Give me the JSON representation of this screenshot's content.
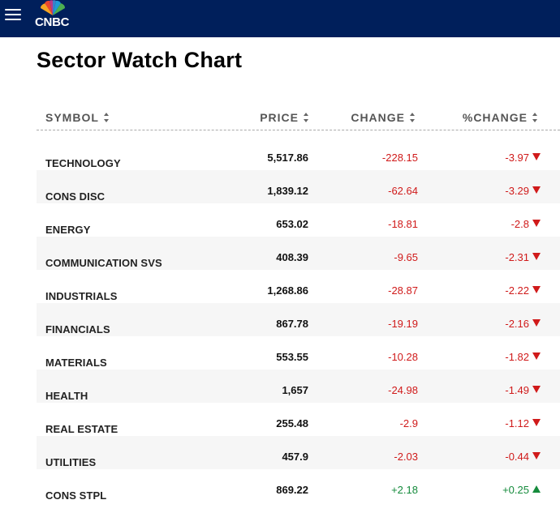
{
  "header": {
    "logo_text": "CNBC",
    "colors": {
      "bar": "#001f5b",
      "negative": "#d01a1a",
      "positive": "#158b3c"
    }
  },
  "page": {
    "title": "Sector Watch Chart"
  },
  "table": {
    "columns": [
      "SYMBOL",
      "PRICE",
      "CHANGE",
      "%CHANGE"
    ],
    "rows": [
      {
        "symbol": "TECHNOLOGY",
        "price": "5,517.86",
        "change": "-228.15",
        "pct": "-3.97",
        "direction": "down"
      },
      {
        "symbol": "CONS DISC",
        "price": "1,839.12",
        "change": "-62.64",
        "pct": "-3.29",
        "direction": "down"
      },
      {
        "symbol": "ENERGY",
        "price": "653.02",
        "change": "-18.81",
        "pct": "-2.8",
        "direction": "down"
      },
      {
        "symbol": "COMMUNICATION SVS",
        "price": "408.39",
        "change": "-9.65",
        "pct": "-2.31",
        "direction": "down"
      },
      {
        "symbol": "INDUSTRIALS",
        "price": "1,268.86",
        "change": "-28.87",
        "pct": "-2.22",
        "direction": "down"
      },
      {
        "symbol": "FINANCIALS",
        "price": "867.78",
        "change": "-19.19",
        "pct": "-2.16",
        "direction": "down"
      },
      {
        "symbol": "MATERIALS",
        "price": "553.55",
        "change": "-10.28",
        "pct": "-1.82",
        "direction": "down"
      },
      {
        "symbol": "HEALTH",
        "price": "1,657",
        "change": "-24.98",
        "pct": "-1.49",
        "direction": "down"
      },
      {
        "symbol": "REAL ESTATE",
        "price": "255.48",
        "change": "-2.9",
        "pct": "-1.12",
        "direction": "down"
      },
      {
        "symbol": "UTILITIES",
        "price": "457.9",
        "change": "-2.03",
        "pct": "-0.44",
        "direction": "down"
      },
      {
        "symbol": "CONS STPL",
        "price": "869.22",
        "change": "+2.18",
        "pct": "+0.25",
        "direction": "up"
      }
    ]
  }
}
